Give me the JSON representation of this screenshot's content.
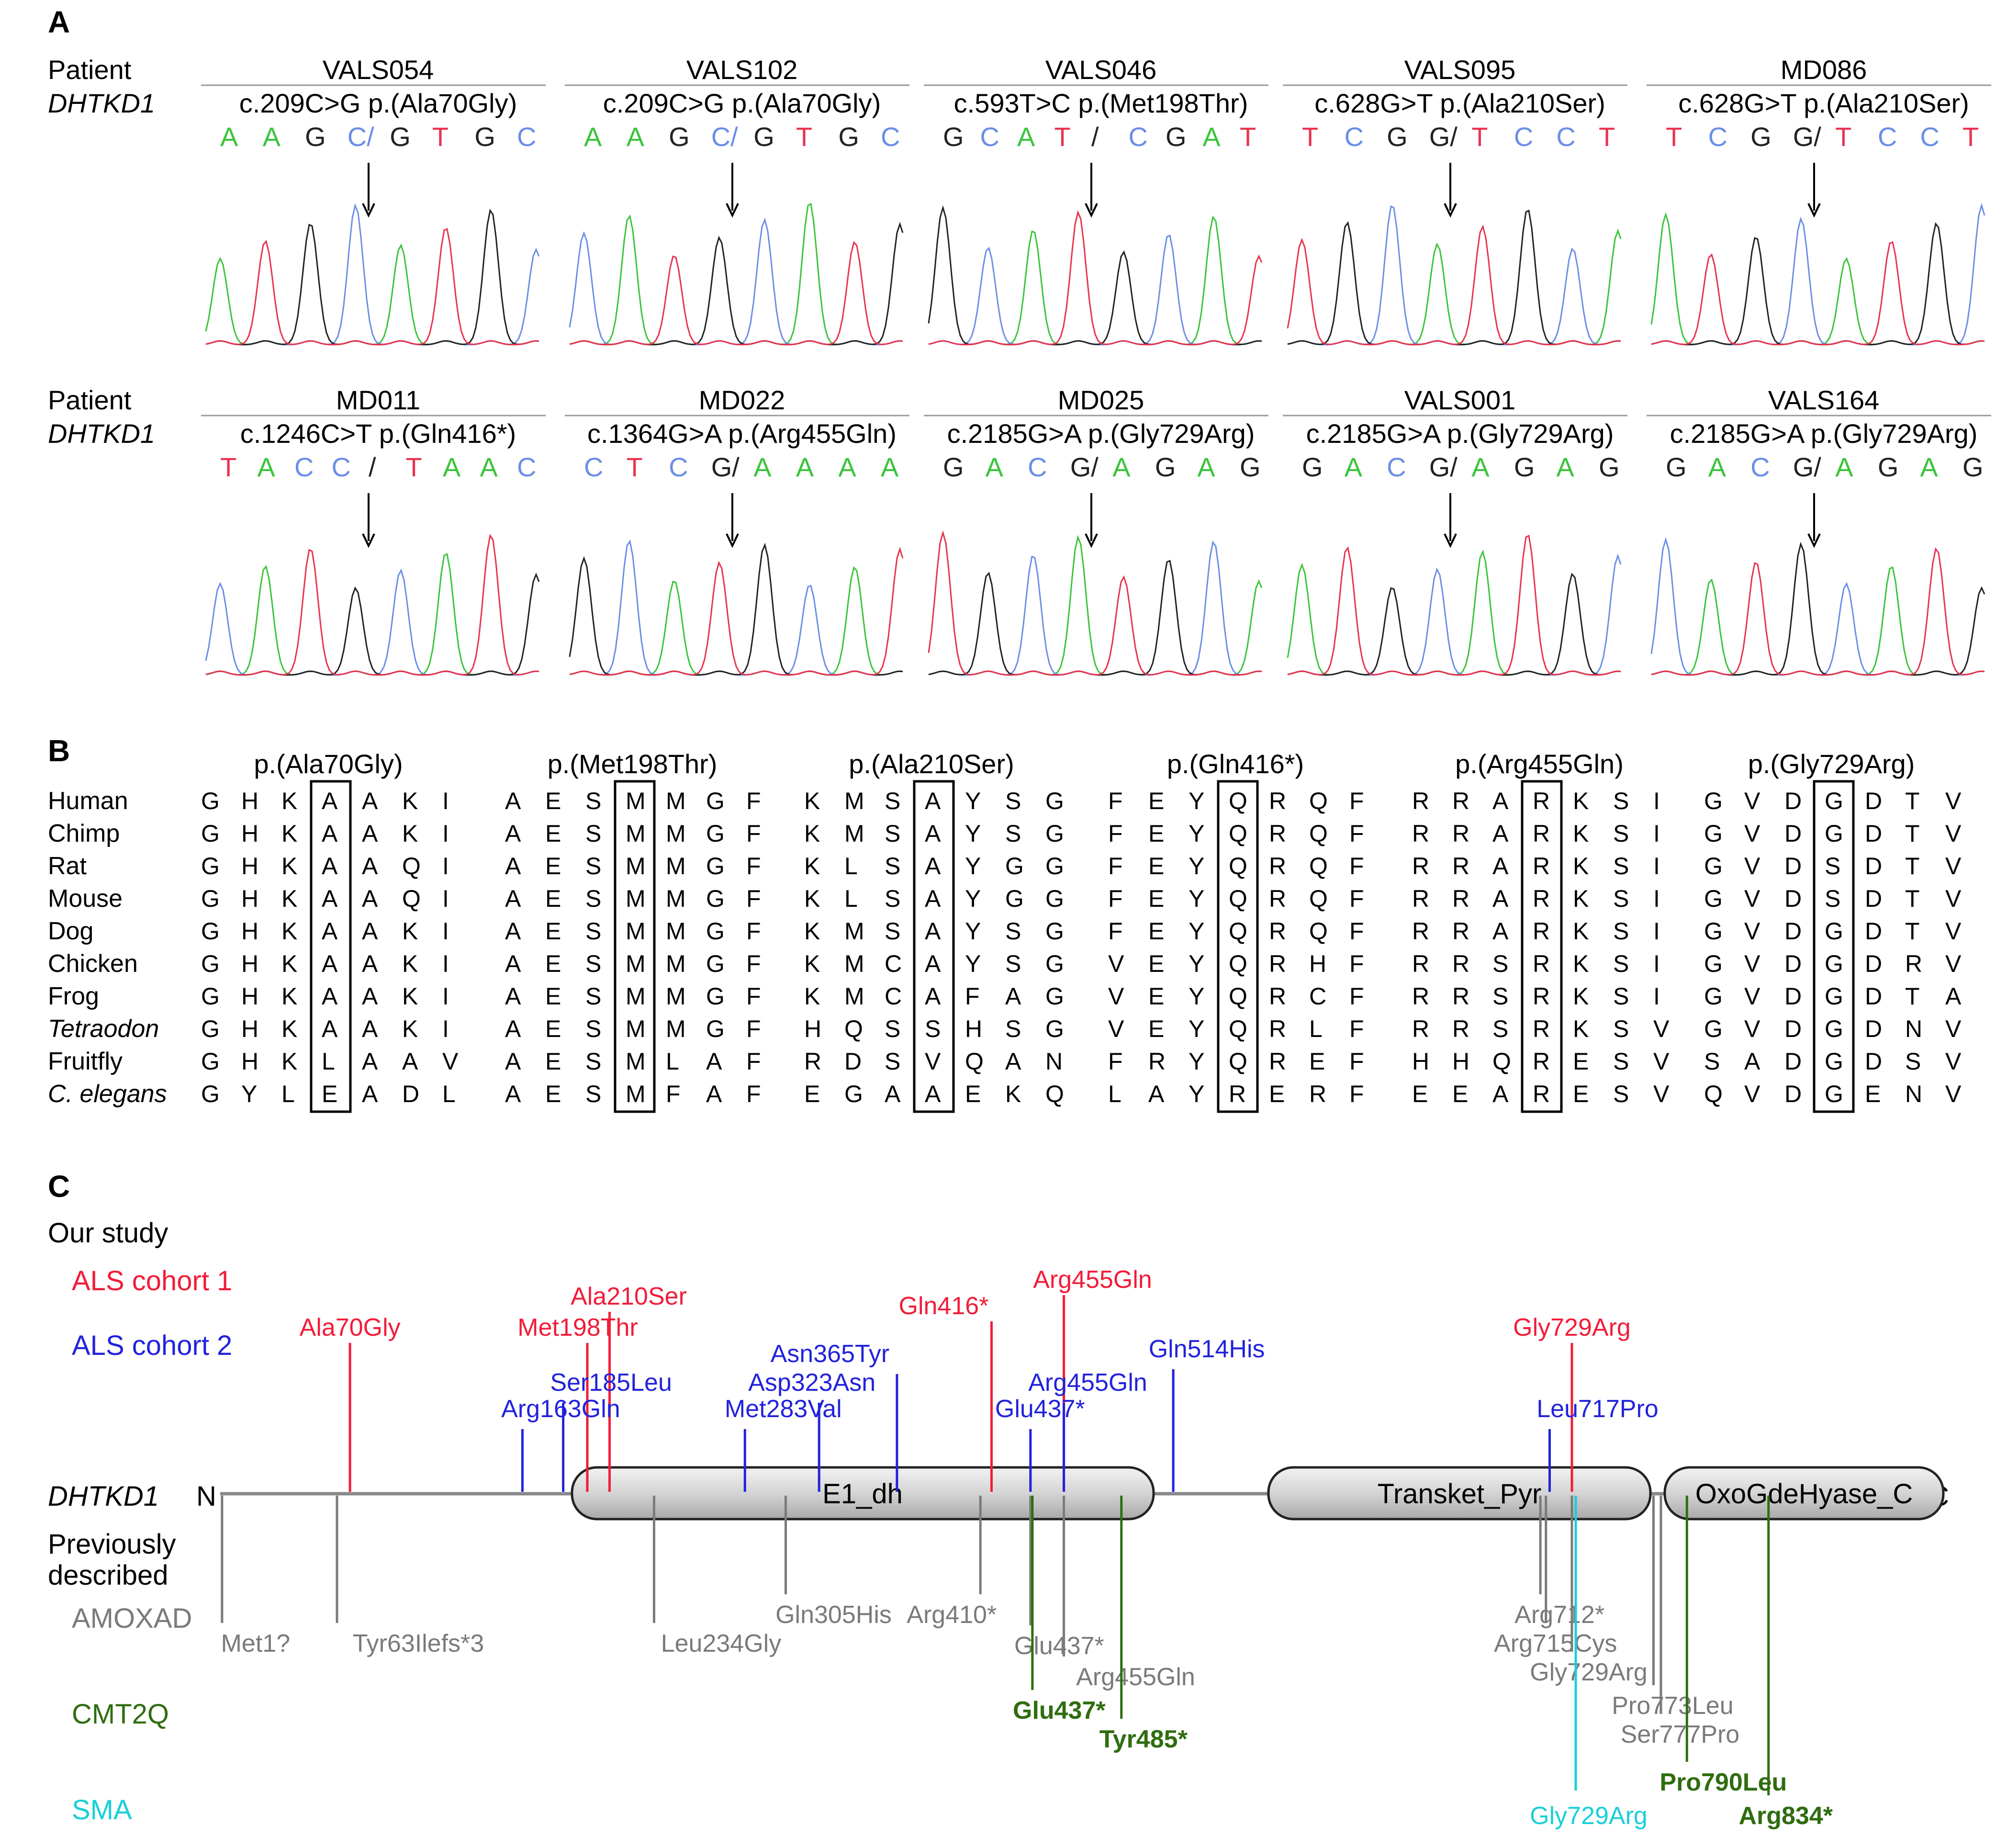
{
  "colors": {
    "A": "#3bc43b",
    "C": "#6b8ee6",
    "G": "#222222",
    "T": "#e8334f",
    "cohort1": "#f21c38",
    "cohort2": "#2222dd",
    "amoxad": "#7a7a7a",
    "cmt2q": "#2f6d10",
    "sma": "#18cfd8"
  },
  "panelA": {
    "label": "A",
    "row_label_patient": "Patient",
    "row_label_gene": "DHTKD1",
    "rows": [
      [
        {
          "patient": "VALS054",
          "variant": "c.209C>G p.(Ala70Gly)",
          "seq": [
            [
              "A",
              "A"
            ],
            [
              "A",
              "A"
            ],
            [
              "G",
              "G"
            ],
            [
              "C/",
              "C"
            ],
            [
              "G",
              "G"
            ],
            [
              "T",
              "T"
            ],
            [
              "G",
              "G"
            ],
            [
              "C",
              "C"
            ]
          ]
        },
        {
          "patient": "VALS102",
          "variant": "c.209C>G p.(Ala70Gly)",
          "seq": [
            [
              "A",
              "A"
            ],
            [
              "A",
              "A"
            ],
            [
              "G",
              "G"
            ],
            [
              "C/",
              "C"
            ],
            [
              "G",
              "G"
            ],
            [
              "T",
              "T"
            ],
            [
              "G",
              "G"
            ],
            [
              "C",
              "C"
            ]
          ]
        },
        {
          "patient": "VALS046",
          "variant": "c.593T>C p.(Met198Thr)",
          "seq": [
            [
              "G",
              "G"
            ],
            [
              "C",
              "C"
            ],
            [
              "A",
              "A"
            ],
            [
              "T",
              "T"
            ],
            [
              "/",
              "G"
            ],
            [
              "C",
              "C"
            ],
            [
              "G",
              "G"
            ],
            [
              "A",
              "A"
            ],
            [
              "T",
              "T"
            ]
          ]
        },
        {
          "patient": "VALS095",
          "variant": "c.628G>T p.(Ala210Ser)",
          "seq": [
            [
              "T",
              "T"
            ],
            [
              "C",
              "C"
            ],
            [
              "G",
              "G"
            ],
            [
              "G/",
              "G"
            ],
            [
              "T",
              "T"
            ],
            [
              "C",
              "C"
            ],
            [
              "C",
              "C"
            ],
            [
              "T",
              "T"
            ]
          ]
        },
        {
          "patient": "MD086",
          "variant": "c.628G>T p.(Ala210Ser)",
          "seq": [
            [
              "T",
              "T"
            ],
            [
              "C",
              "C"
            ],
            [
              "G",
              "G"
            ],
            [
              "G/",
              "G"
            ],
            [
              "T",
              "T"
            ],
            [
              "C",
              "C"
            ],
            [
              "C",
              "C"
            ],
            [
              "T",
              "T"
            ]
          ]
        }
      ],
      [
        {
          "patient": "MD011",
          "variant": "c.1246C>T p.(Gln416*)",
          "seq": [
            [
              "T",
              "T"
            ],
            [
              "A",
              "A"
            ],
            [
              "C",
              "C"
            ],
            [
              "C",
              "C"
            ],
            [
              "/",
              "G"
            ],
            [
              "T",
              "T"
            ],
            [
              "A",
              "A"
            ],
            [
              "A",
              "A"
            ],
            [
              "C",
              "C"
            ]
          ]
        },
        {
          "patient": "MD022",
          "variant": "c.1364G>A p.(Arg455Gln)",
          "seq": [
            [
              "C",
              "C"
            ],
            [
              "T",
              "T"
            ],
            [
              "C",
              "C"
            ],
            [
              "G/",
              "G"
            ],
            [
              "A",
              "A"
            ],
            [
              "A",
              "A"
            ],
            [
              "A",
              "A"
            ],
            [
              "A",
              "A"
            ]
          ]
        },
        {
          "patient": "MD025",
          "variant": "c.2185G>A p.(Gly729Arg)",
          "seq": [
            [
              "G",
              "G"
            ],
            [
              "A",
              "A"
            ],
            [
              "C",
              "C"
            ],
            [
              "G/",
              "G"
            ],
            [
              "A",
              "A"
            ],
            [
              "G",
              "G"
            ],
            [
              "A",
              "A"
            ],
            [
              "G",
              "G"
            ]
          ]
        },
        {
          "patient": "VALS001",
          "variant": "c.2185G>A p.(Gly729Arg)",
          "seq": [
            [
              "G",
              "G"
            ],
            [
              "A",
              "A"
            ],
            [
              "C",
              "C"
            ],
            [
              "G/",
              "G"
            ],
            [
              "A",
              "A"
            ],
            [
              "G",
              "G"
            ],
            [
              "A",
              "A"
            ],
            [
              "G",
              "G"
            ]
          ]
        },
        {
          "patient": "VALS164",
          "variant": "c.2185G>A p.(Gly729Arg)",
          "seq": [
            [
              "G",
              "G"
            ],
            [
              "A",
              "A"
            ],
            [
              "C",
              "C"
            ],
            [
              "G/",
              "G"
            ],
            [
              "A",
              "A"
            ],
            [
              "G",
              "G"
            ],
            [
              "A",
              "A"
            ],
            [
              "G",
              "G"
            ]
          ]
        }
      ]
    ]
  },
  "panelB": {
    "label": "B",
    "species": [
      "Human",
      "Chimp",
      "Rat",
      "Mouse",
      "Dog",
      "Chicken",
      "Frog",
      "Tetraodon",
      "Fruitfly",
      "C. elegans"
    ],
    "groups": [
      {
        "title": "p.(Ala70Gly)",
        "rows": [
          "GHKAAKI",
          "GHKAAKI",
          "GHKAAQI",
          "GHKAAQI",
          "GHKAAKI",
          "GHKAAKI",
          "GHKAAKI",
          "GHKAAKI",
          "GHKLAAV",
          "GYLEADL"
        ]
      },
      {
        "title": "p.(Met198Thr)",
        "rows": [
          "AESMMGF",
          "AESMMGF",
          "AESMMGF",
          "AESMMGF",
          "AESMMGF",
          "AESMMGF",
          "AESMMGF",
          "AESMMGF",
          "AESMLAF",
          "AESMFAF"
        ]
      },
      {
        "title": "p.(Ala210Ser)",
        "rows": [
          "KMSAYSG",
          "KMSAYSG",
          "KLSAYGG",
          "KLSAYGG",
          "KMSAYSG",
          "KMCAYSG",
          "KMCAFAG",
          "HQSSHSG",
          "RDSVQAN",
          "EGAAEKQ"
        ]
      },
      {
        "title": "p.(Gln416*)",
        "rows": [
          "FEYQRQF",
          "FEYQRQF",
          "FEYQRQF",
          "FEYQRQF",
          "FEYQRQF",
          "VEYQRHF",
          "VEYQRCF",
          "VEYQRLF",
          "FRYQREF",
          "LAYRERF"
        ]
      },
      {
        "title": "p.(Arg455Gln)",
        "rows": [
          "RRARKSI",
          "RRARKSI",
          "RRARKSI",
          "RRARKSI",
          "RRARKSI",
          "RRSRKSI",
          "RRSRKSI",
          "RRSRKSV",
          "HHQRESV",
          "EEARESV"
        ]
      },
      {
        "title": "p.(Gly729Arg)",
        "rows": [
          "GVDGDTV",
          "GVDGDTV",
          "GVDSDTV",
          "GVDSDTV",
          "GVDGDTV",
          "GVDGDRV",
          "GVDGDTA",
          "GVDGDNV",
          "SADGDSV",
          "QVDGENV"
        ]
      }
    ]
  },
  "panelC": {
    "label": "C",
    "our_study": "Our study",
    "cohort1": "ALS cohort 1",
    "cohort2": "ALS cohort 2",
    "gene": "DHTKD1",
    "n_term": "N",
    "c_term": "C",
    "prev_line1": "Previously",
    "prev_line2": "described",
    "amoxad": "AMOXAD",
    "cmt2q": "CMT2Q",
    "sma": "SMA",
    "domains": [
      "E1_dh",
      "Transket_Pyr",
      "OxoGdeHyase_C"
    ],
    "cohort1_mutations": [
      "Ala70Gly",
      "Ala210Ser",
      "Met198Thr",
      "Gln416*",
      "Arg455Gln",
      "Gly729Arg"
    ],
    "cohort2_mutations": [
      "Ser185Leu",
      "Arg163Gln",
      "Met283Val",
      "Asp323Asn",
      "Asn365Tyr",
      "Glu437*",
      "Arg455Gln",
      "Gln514His",
      "Leu717Pro"
    ],
    "amoxad_mutations": [
      "Met1?",
      "Tyr63Ilefs*3",
      "Leu234Gly",
      "Gln305His",
      "Arg410*",
      "Glu437*",
      "Arg455Gln",
      "Arg712*",
      "Arg715Cys",
      "Gly729Arg",
      "Pro773Leu",
      "Ser777Pro"
    ],
    "cmt2q_mutations": [
      "Glu437*",
      "Tyr485*",
      "Pro790Leu",
      "Arg834*"
    ],
    "sma_mutations": [
      "Gly729Arg"
    ]
  }
}
